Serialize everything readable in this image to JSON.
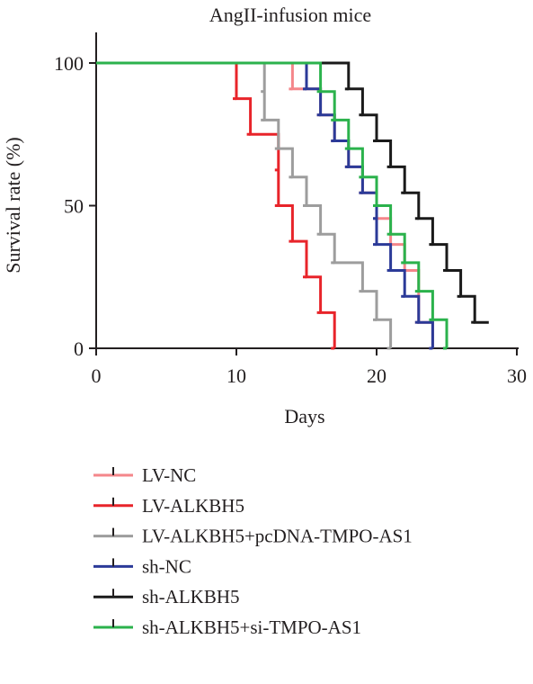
{
  "chart_data": {
    "type": "line",
    "step": true,
    "title": "AngII-infusion mice",
    "xlabel": "Days",
    "ylabel": "Survival rate (%)",
    "xlim": [
      0,
      30
    ],
    "ylim": [
      0,
      100
    ],
    "xticks": [
      0,
      10,
      20,
      30
    ],
    "yticks": [
      0,
      50,
      100
    ],
    "grid": false,
    "legend_position": "bottom",
    "series": [
      {
        "name": "LV-NC",
        "color": "#f4868a",
        "points": [
          [
            0,
            100
          ],
          [
            14,
            100
          ],
          [
            14,
            90.9
          ],
          [
            16,
            90.9
          ],
          [
            16,
            81.8
          ],
          [
            17,
            81.8
          ],
          [
            17,
            72.7
          ],
          [
            18,
            72.7
          ],
          [
            18,
            63.6
          ],
          [
            19,
            63.6
          ],
          [
            19,
            54.5
          ],
          [
            20,
            54.5
          ],
          [
            20,
            45.5
          ],
          [
            21,
            45.5
          ],
          [
            21,
            36.4
          ],
          [
            22,
            36.4
          ],
          [
            22,
            27.3
          ],
          [
            23,
            27.3
          ],
          [
            23,
            18.2
          ],
          [
            23,
            18.2
          ],
          [
            23,
            9.1
          ],
          [
            24,
            9.1
          ],
          [
            24,
            0
          ]
        ]
      },
      {
        "name": "LV-ALKBH5",
        "color": "#e8242a",
        "points": [
          [
            0,
            100
          ],
          [
            10,
            100
          ],
          [
            10,
            87.5
          ],
          [
            11,
            87.5
          ],
          [
            11,
            75
          ],
          [
            13,
            75
          ],
          [
            13,
            62.5
          ],
          [
            13,
            62.5
          ],
          [
            13,
            50
          ],
          [
            14,
            50
          ],
          [
            14,
            37.5
          ],
          [
            15,
            37.5
          ],
          [
            15,
            25
          ],
          [
            16,
            25
          ],
          [
            16,
            12.5
          ],
          [
            17,
            12.5
          ],
          [
            17,
            0
          ]
        ]
      },
      {
        "name": "LV-ALKBH5+pcDNA-TMPO-AS1",
        "color": "#9d9d9d",
        "points": [
          [
            0,
            100
          ],
          [
            12,
            100
          ],
          [
            12,
            90
          ],
          [
            12,
            90
          ],
          [
            12,
            80
          ],
          [
            13,
            80
          ],
          [
            13,
            70
          ],
          [
            14,
            70
          ],
          [
            14,
            60
          ],
          [
            15,
            60
          ],
          [
            15,
            50
          ],
          [
            16,
            50
          ],
          [
            16,
            40
          ],
          [
            17,
            40
          ],
          [
            17,
            30
          ],
          [
            19,
            30
          ],
          [
            19,
            20
          ],
          [
            20,
            20
          ],
          [
            20,
            10
          ],
          [
            21,
            10
          ],
          [
            21,
            0
          ]
        ]
      },
      {
        "name": "sh-NC",
        "color": "#2b3a98",
        "points": [
          [
            0,
            100
          ],
          [
            15,
            100
          ],
          [
            15,
            90.9
          ],
          [
            16,
            90.9
          ],
          [
            16,
            81.8
          ],
          [
            17,
            81.8
          ],
          [
            17,
            72.7
          ],
          [
            18,
            72.7
          ],
          [
            18,
            63.6
          ],
          [
            19,
            63.6
          ],
          [
            19,
            54.5
          ],
          [
            20,
            54.5
          ],
          [
            20,
            45.5
          ],
          [
            20,
            45.5
          ],
          [
            20,
            36.4
          ],
          [
            21,
            36.4
          ],
          [
            21,
            27.3
          ],
          [
            22,
            27.3
          ],
          [
            22,
            18.2
          ],
          [
            23,
            18.2
          ],
          [
            23,
            9.1
          ],
          [
            24,
            9.1
          ],
          [
            24,
            0
          ]
        ]
      },
      {
        "name": "sh-ALKBH5",
        "color": "#1a1a1a",
        "points": [
          [
            0,
            100
          ],
          [
            18,
            100
          ],
          [
            18,
            90.9
          ],
          [
            19,
            90.9
          ],
          [
            19,
            81.8
          ],
          [
            20,
            81.8
          ],
          [
            20,
            72.7
          ],
          [
            21,
            72.7
          ],
          [
            21,
            63.6
          ],
          [
            22,
            63.6
          ],
          [
            22,
            54.5
          ],
          [
            23,
            54.5
          ],
          [
            23,
            45.5
          ],
          [
            24,
            45.5
          ],
          [
            24,
            36.4
          ],
          [
            25,
            36.4
          ],
          [
            25,
            27.3
          ],
          [
            26,
            27.3
          ],
          [
            26,
            18.2
          ],
          [
            27,
            18.2
          ],
          [
            27,
            9.1
          ],
          [
            28,
            9.1
          ]
        ]
      },
      {
        "name": "sh-ALKBH5+si-TMPO-AS1",
        "color": "#2bb24c",
        "points": [
          [
            0,
            100
          ],
          [
            16,
            100
          ],
          [
            16,
            90
          ],
          [
            17,
            90
          ],
          [
            17,
            80
          ],
          [
            18,
            80
          ],
          [
            18,
            70
          ],
          [
            19,
            70
          ],
          [
            19,
            60
          ],
          [
            20,
            60
          ],
          [
            20,
            50
          ],
          [
            21,
            50
          ],
          [
            21,
            40
          ],
          [
            22,
            40
          ],
          [
            22,
            30
          ],
          [
            23,
            30
          ],
          [
            23,
            20
          ],
          [
            24,
            20
          ],
          [
            24,
            10
          ],
          [
            25,
            10
          ],
          [
            25,
            0
          ]
        ]
      }
    ]
  }
}
